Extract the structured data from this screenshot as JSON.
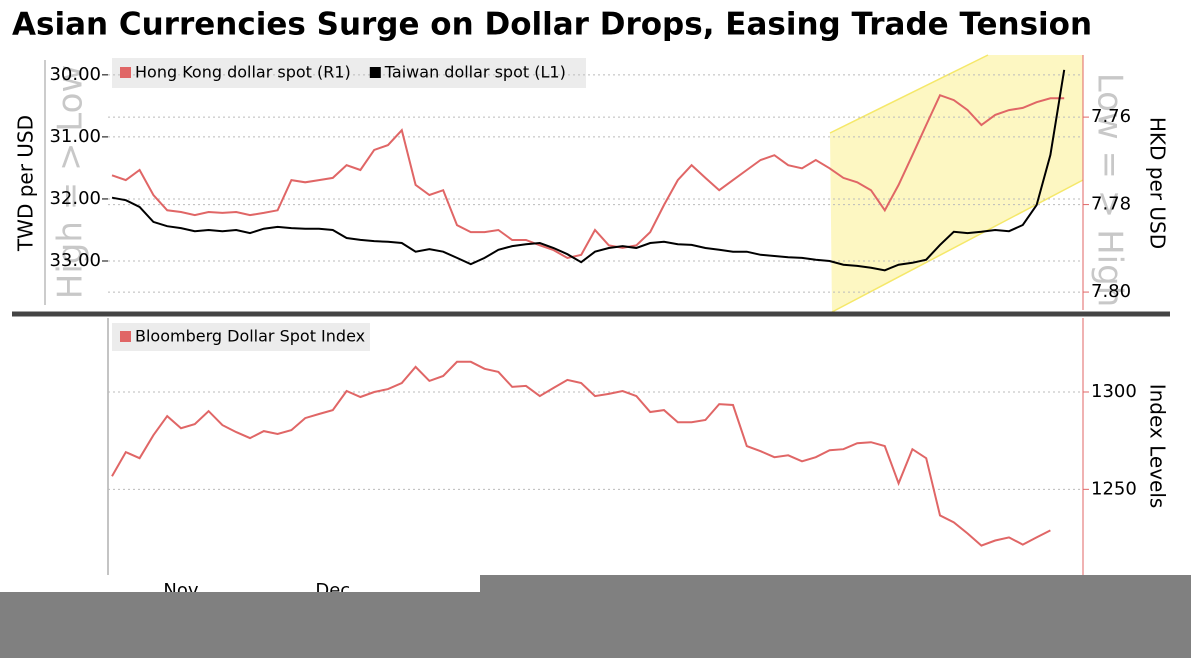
{
  "title": "Asian Currencies Surge on Dollar Drops, Easing Trade Tension",
  "chart_data": [
    {
      "type": "line",
      "ylabel": "TWD per USD",
      "y2label": "HKD per USD",
      "annotations": [
        "High = > Low",
        "Low = > High"
      ],
      "ylim": [
        29.68,
        33.79
      ],
      "y_inverted": true,
      "yticks": [
        {
          "value": 30,
          "label": "30.00"
        },
        {
          "value": 31,
          "label": "31.00"
        },
        {
          "value": 32,
          "label": "32.00"
        },
        {
          "value": 33,
          "label": "33.00"
        }
      ],
      "y2lim": [
        7.7458,
        7.8041
      ],
      "y2_inverted": true,
      "y2ticks": [
        7.76,
        7.78,
        {
          "value": 7.8,
          "label": "7.80"
        }
      ],
      "grid": true,
      "series": [
        {
          "name": "Hong Kong dollar spot (R1)",
          "color": "#e06666",
          "axis": "y2",
          "values": [
            7.7733,
            7.7744,
            7.7721,
            7.7778,
            7.7813,
            7.7817,
            7.7824,
            7.7817,
            7.7819,
            7.7817,
            7.7824,
            7.7819,
            7.7813,
            7.7744,
            7.7749,
            7.7744,
            7.7739,
            7.771,
            7.7721,
            7.7675,
            7.7664,
            7.763,
            7.7755,
            7.7778,
            7.7767,
            7.7847,
            7.7863,
            7.7863,
            7.7858,
            7.7881,
            7.7881,
            7.7893,
            7.7904,
            7.7922,
            7.7915,
            7.7858,
            7.7893,
            7.7899,
            7.7893,
            7.7863,
            7.7801,
            7.7744,
            7.771,
            7.7739,
            7.7767,
            7.7744,
            7.7721,
            7.7698,
            7.7687,
            7.771,
            7.7717,
            7.7698,
            7.7717,
            7.7739,
            7.7749,
            7.7767,
            7.7813,
            7.7755,
            7.7687,
            7.7618,
            7.755,
            7.7561,
            7.7584,
            7.7618,
            7.7595,
            7.7584,
            7.7579,
            7.7566,
            7.7557,
            7.7557
          ]
        },
        {
          "name": "Taiwan dollar spot (L1)",
          "color": "#000000",
          "values": [
            31.98,
            32.02,
            32.13,
            32.37,
            32.44,
            32.47,
            32.52,
            32.5,
            32.52,
            32.5,
            32.55,
            32.48,
            32.45,
            32.47,
            32.48,
            32.48,
            32.5,
            32.63,
            32.66,
            32.68,
            32.69,
            32.71,
            32.85,
            32.81,
            32.85,
            32.95,
            33.05,
            32.95,
            32.82,
            32.76,
            32.73,
            32.71,
            32.79,
            32.89,
            33.02,
            32.85,
            32.79,
            32.76,
            32.79,
            32.71,
            32.69,
            32.73,
            32.74,
            32.79,
            32.82,
            32.85,
            32.85,
            32.9,
            32.92,
            32.94,
            32.95,
            32.98,
            33.0,
            33.06,
            33.08,
            33.11,
            33.15,
            33.06,
            33.03,
            32.98,
            32.74,
            32.53,
            32.55,
            32.53,
            32.5,
            32.52,
            32.42,
            32.1,
            31.29,
            29.92
          ]
        }
      ]
    },
    {
      "type": "line",
      "ylabel": "Index Levels",
      "categories": [
        null,
        null,
        null,
        null,
        null,
        "Nov",
        null,
        null,
        null,
        null,
        null,
        null,
        null,
        null,
        null,
        null,
        "Dec",
        null,
        null,
        null,
        null,
        null,
        null,
        null,
        null,
        null,
        null,
        null,
        null,
        null,
        null,
        null,
        null,
        null,
        null,
        null,
        null,
        null,
        null,
        null,
        null,
        null,
        null,
        null,
        null,
        null,
        null,
        null,
        null,
        null,
        null,
        null,
        null,
        null,
        null,
        null,
        null,
        null,
        null,
        null,
        null,
        null,
        null,
        null,
        null,
        null,
        null,
        null,
        null,
        null
      ],
      "ylim": [
        1206,
        1338
      ],
      "yticks": [
        1250,
        1300
      ],
      "grid": true,
      "series": [
        {
          "name": "Bloomberg Dollar Spot Index",
          "color": "#e06666",
          "values": [
            1256.7,
            1269.1,
            1266.0,
            1277.8,
            1287.6,
            1281.4,
            1283.5,
            1290.2,
            1283.0,
            1279.4,
            1276.3,
            1279.9,
            1278.4,
            1280.4,
            1286.6,
            1288.7,
            1290.7,
            1300.5,
            1297.4,
            1300.0,
            1301.5,
            1304.6,
            1312.9,
            1305.7,
            1308.2,
            1315.5,
            1315.5,
            1311.9,
            1310.3,
            1302.6,
            1303.1,
            1297.9,
            1302.1,
            1306.2,
            1304.6,
            1297.9,
            1299.0,
            1300.5,
            1297.9,
            1289.7,
            1290.7,
            1284.5,
            1284.5,
            1285.6,
            1293.8,
            1293.3,
            1272.2,
            1269.6,
            1266.5,
            1267.5,
            1264.4,
            1266.5,
            1270.1,
            1270.6,
            1273.7,
            1274.2,
            1272.2,
            1253.1,
            1270.6,
            1266.0,
            1236.6,
            1233.0,
            1227.3,
            1221.1,
            1223.7,
            1225.3,
            1221.6,
            1225.3,
            1228.9,
            null
          ]
        }
      ]
    }
  ]
}
